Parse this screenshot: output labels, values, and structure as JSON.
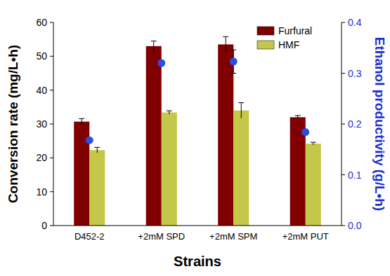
{
  "chart_data": {
    "type": "bar",
    "categories": [
      "D452-2",
      "+2mM SPD",
      "+2mM SPM",
      "+2mM PUT"
    ],
    "x_label": "Strains",
    "y_label": "Conversion rate (mg/L•h)",
    "y2_label": "Ethanol productivity (g/L•h)",
    "series": [
      {
        "name": "Furfural",
        "color": "#800000",
        "values": [
          30.7,
          53.0,
          53.5,
          32.0
        ],
        "error": [
          0.9,
          1.5,
          2.3,
          0.5
        ]
      },
      {
        "name": "HMF",
        "color": "#c4c84a",
        "values": [
          22.3,
          33.4,
          34.0,
          24.2
        ],
        "error": [
          0.8,
          0.5,
          2.3,
          0.4
        ]
      },
      {
        "type": "scatter",
        "axis": "y2",
        "color": "#2a4fe0",
        "marker": "circle",
        "values": [
          0.168,
          0.32,
          0.323,
          0.184
        ],
        "error": [
          0.003,
          0.003,
          0.023,
          0.003
        ]
      }
    ],
    "ylim": [
      0,
      60
    ],
    "yticks": [
      0,
      10,
      20,
      30,
      40,
      50,
      60
    ],
    "y2lim": [
      0,
      0.4
    ],
    "y2ticks": [
      {
        "value": 0,
        "label": "0.0"
      },
      {
        "value": 0.1,
        "label": "0.1"
      },
      {
        "value": 0.2,
        "label": "0.2"
      },
      {
        "value": 0.3,
        "label": "0.3"
      },
      {
        "value": 0.4,
        "label": "0.4"
      }
    ],
    "legend": "top-right",
    "grid": false
  }
}
